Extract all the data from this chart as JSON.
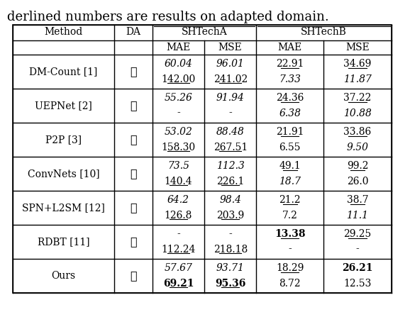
{
  "title_text": "derlined numbers are results on adapted domain.",
  "col_headers": [
    "Method",
    "DA",
    "SHTechA",
    "",
    "SHTechB",
    ""
  ],
  "sub_headers": [
    "",
    "",
    "MAE",
    "MSE",
    "MAE",
    "MSE"
  ],
  "rows": [
    {
      "method": "DM-Count [1]",
      "da": "✗",
      "shA_mae_top": "60.04",
      "shA_mse_top": "96.01",
      "shB_mae_top": "22.91",
      "shB_mse_top": "34.69",
      "shA_mae_bot": "142.00",
      "shA_mse_bot": "241.02",
      "shB_mae_bot": "7.33",
      "shB_mse_bot": "11.87",
      "shA_mae_top_ul": false,
      "shA_mse_top_ul": false,
      "shB_mae_top_ul": true,
      "shB_mse_top_ul": true,
      "shA_mae_bot_ul": true,
      "shA_mse_bot_ul": true,
      "shB_mae_bot_ul": false,
      "shB_mse_bot_ul": false,
      "shA_mae_top_bold": false,
      "shA_mse_top_bold": false,
      "shB_mae_top_bold": false,
      "shB_mse_top_bold": false,
      "shA_mae_bot_bold": false,
      "shA_mse_bot_bold": false,
      "shB_mae_bot_bold": false,
      "shB_mse_bot_bold": false,
      "shA_mae_top_italic": true,
      "shA_mse_top_italic": true,
      "shB_mae_top_italic": false,
      "shB_mse_top_italic": false,
      "shA_mae_bot_italic": false,
      "shA_mse_bot_italic": false,
      "shB_mae_bot_italic": true,
      "shB_mse_bot_italic": true
    },
    {
      "method": "UEPNet [2]",
      "da": "✗",
      "shA_mae_top": "55.26",
      "shA_mse_top": "91.94",
      "shB_mae_top": "24.36",
      "shB_mse_top": "37.22",
      "shA_mae_bot": "-",
      "shA_mse_bot": "-",
      "shB_mae_bot": "6.38",
      "shB_mse_bot": "10.88",
      "shA_mae_top_ul": false,
      "shA_mse_top_ul": false,
      "shB_mae_top_ul": true,
      "shB_mse_top_ul": true,
      "shA_mae_bot_ul": false,
      "shA_mse_bot_ul": false,
      "shB_mae_bot_ul": false,
      "shB_mse_bot_ul": false,
      "shA_mae_top_bold": false,
      "shA_mse_top_bold": false,
      "shB_mae_top_bold": false,
      "shB_mse_top_bold": false,
      "shA_mae_bot_bold": false,
      "shA_mse_bot_bold": false,
      "shB_mae_bot_bold": false,
      "shB_mse_bot_bold": false,
      "shA_mae_top_italic": true,
      "shA_mse_top_italic": true,
      "shB_mae_top_italic": false,
      "shB_mse_top_italic": false,
      "shA_mae_bot_italic": false,
      "shA_mse_bot_italic": false,
      "shB_mae_bot_italic": true,
      "shB_mse_bot_italic": true
    },
    {
      "method": "P2P [3]",
      "da": "✗",
      "shA_mae_top": "53.02",
      "shA_mse_top": "88.48",
      "shB_mae_top": "21.91",
      "shB_mse_top": "33.86",
      "shA_mae_bot": "158.30",
      "shA_mse_bot": "267.51",
      "shB_mae_bot": "6.55",
      "shB_mse_bot": "9.50",
      "shA_mae_top_ul": false,
      "shA_mse_top_ul": false,
      "shB_mae_top_ul": true,
      "shB_mse_top_ul": true,
      "shA_mae_bot_ul": true,
      "shA_mse_bot_ul": true,
      "shB_mae_bot_ul": false,
      "shB_mse_bot_ul": false,
      "shA_mae_top_bold": false,
      "shA_mse_top_bold": false,
      "shB_mae_top_bold": false,
      "shB_mse_top_bold": false,
      "shA_mae_bot_bold": false,
      "shA_mse_bot_bold": false,
      "shB_mae_bot_bold": false,
      "shB_mse_bot_bold": false,
      "shA_mae_top_italic": true,
      "shA_mse_top_italic": true,
      "shB_mae_top_italic": false,
      "shB_mse_top_italic": false,
      "shA_mae_bot_italic": false,
      "shA_mse_bot_italic": false,
      "shB_mae_bot_italic": false,
      "shB_mse_bot_italic": true
    },
    {
      "method": "ConvNets [10]",
      "da": "✓",
      "shA_mae_top": "73.5",
      "shA_mse_top": "112.3",
      "shB_mae_top": "49.1",
      "shB_mse_top": "99.2",
      "shA_mae_bot": "140.4",
      "shA_mse_bot": "226.1",
      "shB_mae_bot": "18.7",
      "shB_mse_bot": "26.0",
      "shA_mae_top_ul": false,
      "shA_mse_top_ul": false,
      "shB_mae_top_ul": true,
      "shB_mse_top_ul": true,
      "shA_mae_bot_ul": true,
      "shA_mse_bot_ul": true,
      "shB_mae_bot_ul": false,
      "shB_mse_bot_ul": false,
      "shA_mae_top_bold": false,
      "shA_mse_top_bold": false,
      "shB_mae_top_bold": false,
      "shB_mse_top_bold": false,
      "shA_mae_bot_bold": false,
      "shA_mse_bot_bold": false,
      "shB_mae_bot_bold": false,
      "shB_mse_bot_bold": false,
      "shA_mae_top_italic": true,
      "shA_mse_top_italic": true,
      "shB_mae_top_italic": false,
      "shB_mse_top_italic": false,
      "shA_mae_bot_italic": false,
      "shA_mse_bot_italic": false,
      "shB_mae_bot_italic": true,
      "shB_mse_bot_italic": false
    },
    {
      "method": "SPN+L2SM [12]",
      "da": "✓",
      "shA_mae_top": "64.2",
      "shA_mse_top": "98.4",
      "shB_mae_top": "21.2",
      "shB_mse_top": "38.7",
      "shA_mae_bot": "126.8",
      "shA_mse_bot": "203.9",
      "shB_mae_bot": "7.2",
      "shB_mse_bot": "11.1",
      "shA_mae_top_ul": false,
      "shA_mse_top_ul": false,
      "shB_mae_top_ul": true,
      "shB_mse_top_ul": true,
      "shA_mae_bot_ul": true,
      "shA_mse_bot_ul": true,
      "shB_mae_bot_ul": false,
      "shB_mse_bot_ul": false,
      "shA_mae_top_bold": false,
      "shA_mse_top_bold": false,
      "shB_mae_top_bold": false,
      "shB_mse_top_bold": false,
      "shA_mae_bot_bold": false,
      "shA_mse_bot_bold": false,
      "shB_mae_bot_bold": false,
      "shB_mse_bot_bold": false,
      "shA_mae_top_italic": true,
      "shA_mse_top_italic": true,
      "shB_mae_top_italic": false,
      "shB_mse_top_italic": false,
      "shA_mae_bot_italic": false,
      "shA_mse_bot_italic": false,
      "shB_mae_bot_italic": false,
      "shB_mse_bot_italic": true
    },
    {
      "method": "RDBT [11]",
      "da": "✓",
      "shA_mae_top": "-",
      "shA_mse_top": "-",
      "shB_mae_top": "13.38",
      "shB_mse_top": "29.25",
      "shA_mae_bot": "112.24",
      "shA_mse_bot": "218.18",
      "shB_mae_bot": "-",
      "shB_mse_bot": "-",
      "shA_mae_top_ul": false,
      "shA_mse_top_ul": false,
      "shB_mae_top_ul": true,
      "shB_mse_top_ul": true,
      "shA_mae_bot_ul": true,
      "shA_mse_bot_ul": true,
      "shB_mae_bot_ul": false,
      "shB_mse_bot_ul": false,
      "shA_mae_top_bold": false,
      "shA_mse_top_bold": false,
      "shB_mae_top_bold": true,
      "shB_mse_top_bold": false,
      "shA_mae_bot_bold": false,
      "shA_mse_bot_bold": false,
      "shB_mae_bot_bold": false,
      "shB_mse_bot_bold": false,
      "shA_mae_top_italic": false,
      "shA_mse_top_italic": false,
      "shB_mae_top_italic": false,
      "shB_mse_top_italic": false,
      "shA_mae_bot_italic": false,
      "shA_mse_bot_italic": false,
      "shB_mae_bot_italic": false,
      "shB_mse_bot_italic": false
    },
    {
      "method": "Ours",
      "da": "✓",
      "shA_mae_top": "57.67",
      "shA_mse_top": "93.71",
      "shB_mae_top": "18.29",
      "shB_mse_top": "26.21",
      "shA_mae_bot": "69.21",
      "shA_mse_bot": "95.36",
      "shB_mae_bot": "8.72",
      "shB_mse_bot": "12.53",
      "shA_mae_top_ul": false,
      "shA_mse_top_ul": false,
      "shB_mae_top_ul": true,
      "shB_mse_top_ul": false,
      "shA_mae_bot_ul": true,
      "shA_mse_bot_ul": true,
      "shB_mae_bot_ul": false,
      "shB_mse_bot_ul": false,
      "shA_mae_top_bold": false,
      "shA_mse_top_bold": false,
      "shB_mae_top_bold": false,
      "shB_mse_top_bold": true,
      "shA_mae_bot_bold": true,
      "shA_mse_bot_bold": true,
      "shB_mae_bot_bold": false,
      "shB_mse_bot_bold": false,
      "shA_mae_top_italic": true,
      "shA_mse_top_italic": true,
      "shB_mae_top_italic": false,
      "shB_mse_top_italic": false,
      "shA_mae_bot_italic": false,
      "shA_mse_bot_italic": false,
      "shB_mae_bot_italic": false,
      "shB_mse_bot_italic": false
    }
  ],
  "background_color": "#ffffff",
  "font_size": 9.5,
  "title_font_size": 13
}
